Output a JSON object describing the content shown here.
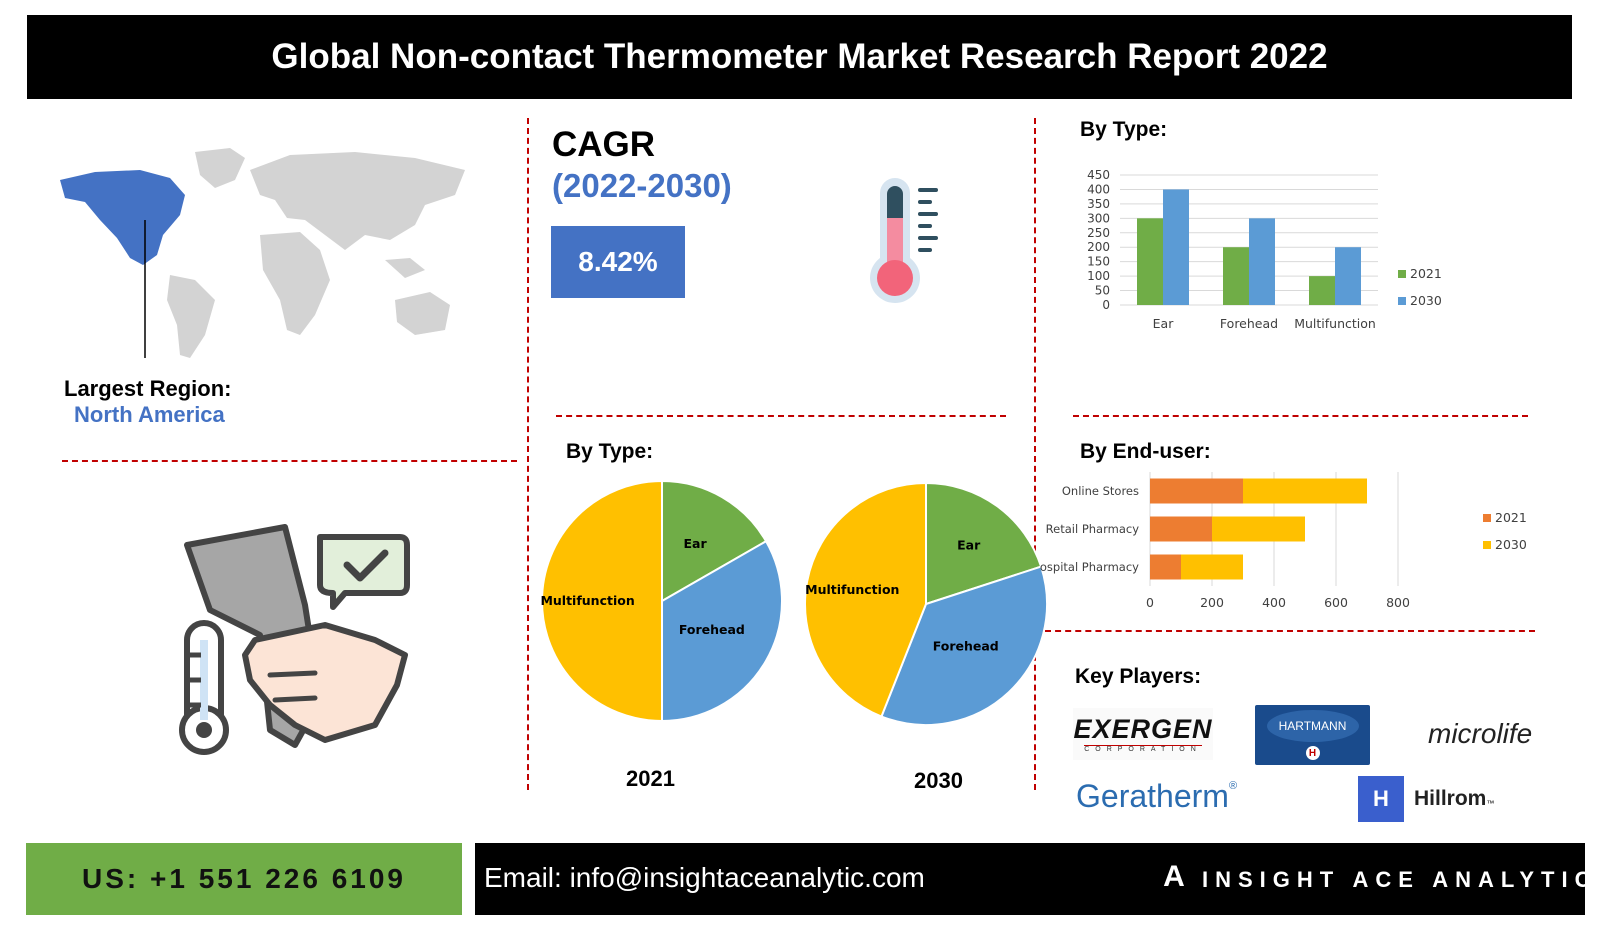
{
  "header": {
    "title": "Global Non-contact Thermometer Market Research Report 2022"
  },
  "region": {
    "label": "Largest Region:",
    "value": "North America"
  },
  "cagr": {
    "title": "CAGR",
    "period": "(2022-2030)",
    "value": "8.42%"
  },
  "colors": {
    "accent_blue": "#4472c4",
    "green": "#70ad47",
    "orange": "#ed7d31",
    "yellow": "#ffc000",
    "light_blue": "#5b9bd5",
    "divider_red": "#c00000"
  },
  "icons": [
    "world-map-icon",
    "thermometer-icon",
    "thermometer-gun-icon",
    "checkmark-icon",
    "hand-icon"
  ],
  "sections": {
    "by_type_pies": "By Type:",
    "by_type_bar": "By Type:",
    "by_enduser": "By End-user:",
    "key_players": "Key Players:"
  },
  "chart_data": [
    {
      "type": "bar",
      "categories": [
        "Ear",
        "Forehead",
        "Multifunction"
      ],
      "series": [
        {
          "name": "2021",
          "values": [
            300,
            200,
            100
          ],
          "color": "#70ad47"
        },
        {
          "name": "2030",
          "values": [
            400,
            300,
            200
          ],
          "color": "#5b9bd5"
        }
      ],
      "yticks": [
        "0",
        "50",
        "100",
        "150",
        "200",
        "250",
        "300",
        "350",
        "400",
        "450"
      ],
      "ylim": [
        0,
        450
      ],
      "grid": true,
      "legend": "right"
    },
    {
      "type": "pie",
      "year": "2021",
      "slices": [
        {
          "label": "Ear",
          "value": 16.7,
          "color": "#70ad47"
        },
        {
          "label": "Forehead",
          "value": 33.3,
          "color": "#5b9bd5"
        },
        {
          "label": "Multifunction",
          "value": 50,
          "color": "#ffc000"
        }
      ]
    },
    {
      "type": "pie",
      "year": "2030",
      "slices": [
        {
          "label": "Ear",
          "value": 20,
          "color": "#70ad47"
        },
        {
          "label": "Forehead",
          "value": 36,
          "color": "#5b9bd5"
        },
        {
          "label": "Multifunction",
          "value": 44,
          "color": "#ffc000"
        }
      ]
    },
    {
      "type": "bar",
      "orientation": "horizontal-stacked",
      "categories": [
        "Online Stores",
        "Retail Pharmacy",
        "Hospital Pharmacy"
      ],
      "series": [
        {
          "name": "2021",
          "values": [
            300,
            200,
            100
          ],
          "color": "#ed7d31"
        },
        {
          "name": "2030",
          "values": [
            400,
            300,
            200
          ],
          "color": "#ffc000"
        }
      ],
      "xticks": [
        "0",
        "200",
        "400",
        "600",
        "800"
      ],
      "xlim": [
        0,
        800
      ],
      "grid": true,
      "legend": "right"
    }
  ],
  "key_players": {
    "exergen": {
      "name": "EXERGEN",
      "sub": "CORPORATION"
    },
    "hartmann": {
      "name": "HARTMANN",
      "badge": "H"
    },
    "microlife": {
      "name": "microlife"
    },
    "geratherm": {
      "name": "Geratherm",
      "mark": "®"
    },
    "hillrom": {
      "name": "Hillrom",
      "mark": "™",
      "badge": "H"
    }
  },
  "footer": {
    "phone": "US: +1 551 226 6109",
    "email": "Email: info@insightaceanalytic.com",
    "brand": "INSIGHT ACE ANALYTIC",
    "brand_mark": "A"
  }
}
